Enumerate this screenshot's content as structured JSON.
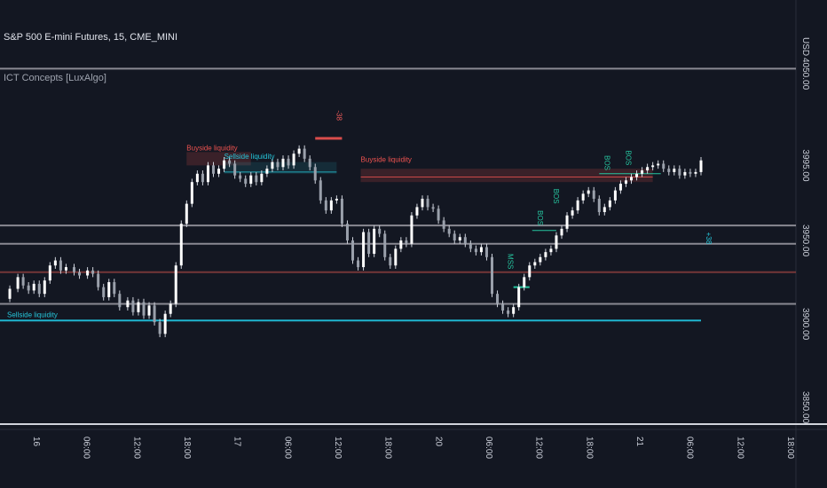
{
  "header": {
    "title": "S&P 500 E-mini Futures, 15, CME_MINI",
    "indicator": "ICT Concepts [LuxAlgo]"
  },
  "chart_data": {
    "type": "line",
    "currency": "USD",
    "ylim": [
      3845,
      4080
    ],
    "y_ticks": [
      3850,
      3900,
      3950,
      3995,
      4050
    ],
    "y_tick_labels": [
      "3850.00",
      "3900.00",
      "3950.00",
      "3995.00",
      "4050.00"
    ],
    "x_ticks": [
      "16",
      "06:00",
      "12:00",
      "18:00",
      "17",
      "06:00",
      "12:00",
      "18:00",
      "20",
      "06:00",
      "12:00",
      "18:00",
      "21",
      "06:00",
      "12:00",
      "18:00"
    ],
    "x_range": [
      0,
      300
    ],
    "price": [
      [
        0,
        3915
      ],
      [
        2,
        3921
      ],
      [
        5,
        3928
      ],
      [
        7,
        3923
      ],
      [
        9,
        3920
      ],
      [
        11,
        3924
      ],
      [
        13,
        3918
      ],
      [
        15,
        3926
      ],
      [
        17,
        3935
      ],
      [
        19,
        3938
      ],
      [
        21,
        3932
      ],
      [
        23,
        3934
      ],
      [
        26,
        3931
      ],
      [
        28,
        3929
      ],
      [
        31,
        3932
      ],
      [
        33,
        3930
      ],
      [
        35,
        3922
      ],
      [
        37,
        3916
      ],
      [
        39,
        3925
      ],
      [
        41,
        3918
      ],
      [
        43,
        3910
      ],
      [
        46,
        3914
      ],
      [
        48,
        3907
      ],
      [
        50,
        3913
      ],
      [
        52,
        3905
      ],
      [
        54,
        3911
      ],
      [
        56,
        3901
      ],
      [
        58,
        3894
      ],
      [
        60,
        3906
      ],
      [
        62,
        3912
      ],
      [
        64,
        3935
      ],
      [
        66,
        3960
      ],
      [
        68,
        3972
      ],
      [
        70,
        3985
      ],
      [
        72,
        3990
      ],
      [
        74,
        3985
      ],
      [
        76,
        3995
      ],
      [
        78,
        3990
      ],
      [
        80,
        3993
      ],
      [
        82,
        3998
      ],
      [
        84,
        3996
      ],
      [
        86,
        3989
      ],
      [
        88,
        3987
      ],
      [
        90,
        3984
      ],
      [
        92,
        3989
      ],
      [
        94,
        3985
      ],
      [
        96,
        3990
      ],
      [
        98,
        3993
      ],
      [
        100,
        3997
      ],
      [
        102,
        3994
      ],
      [
        104,
        3999
      ],
      [
        106,
        3995
      ],
      [
        108,
        4002
      ],
      [
        110,
        4005
      ],
      [
        112,
        3999
      ],
      [
        114,
        3994
      ],
      [
        116,
        3986
      ],
      [
        118,
        3974
      ],
      [
        120,
        3968
      ],
      [
        122,
        3974
      ],
      [
        124,
        3975
      ],
      [
        126,
        3960
      ],
      [
        128,
        3950
      ],
      [
        130,
        3938
      ],
      [
        132,
        3934
      ],
      [
        134,
        3955
      ],
      [
        136,
        3942
      ],
      [
        138,
        3957
      ],
      [
        140,
        3954
      ],
      [
        142,
        3940
      ],
      [
        144,
        3935
      ],
      [
        146,
        3945
      ],
      [
        148,
        3950
      ],
      [
        150,
        3948
      ],
      [
        152,
        3965
      ],
      [
        154,
        3970
      ],
      [
        156,
        3975
      ],
      [
        158,
        3970
      ],
      [
        160,
        3969
      ],
      [
        162,
        3962
      ],
      [
        164,
        3957
      ],
      [
        166,
        3954
      ],
      [
        168,
        3950
      ],
      [
        170,
        3952
      ],
      [
        172,
        3948
      ],
      [
        174,
        3945
      ],
      [
        176,
        3943
      ],
      [
        178,
        3946
      ],
      [
        180,
        3940
      ],
      [
        182,
        3918
      ],
      [
        184,
        3912
      ],
      [
        186,
        3908
      ],
      [
        188,
        3906
      ],
      [
        190,
        3910
      ],
      [
        192,
        3922
      ],
      [
        194,
        3928
      ],
      [
        196,
        3935
      ],
      [
        198,
        3937
      ],
      [
        200,
        3940
      ],
      [
        202,
        3943
      ],
      [
        204,
        3945
      ],
      [
        206,
        3953
      ],
      [
        208,
        3957
      ],
      [
        210,
        3965
      ],
      [
        212,
        3968
      ],
      [
        214,
        3974
      ],
      [
        216,
        3978
      ],
      [
        218,
        3980
      ],
      [
        220,
        3975
      ],
      [
        222,
        3967
      ],
      [
        224,
        3970
      ],
      [
        226,
        3974
      ],
      [
        228,
        3980
      ],
      [
        230,
        3984
      ],
      [
        232,
        3986
      ],
      [
        234,
        3988
      ],
      [
        236,
        3990
      ],
      [
        238,
        3992
      ],
      [
        240,
        3994
      ],
      [
        242,
        3995
      ],
      [
        244,
        3996
      ],
      [
        246,
        3993
      ],
      [
        248,
        3991
      ],
      [
        250,
        3993
      ],
      [
        252,
        3989
      ],
      [
        254,
        3991
      ],
      [
        256,
        3990
      ],
      [
        258,
        3991
      ],
      [
        260,
        3998
      ]
    ],
    "levels": [
      {
        "value": 4053,
        "color": "#9e9ea6"
      },
      {
        "value": 3959,
        "color": "#9e9ea6"
      },
      {
        "value": 3948,
        "color": "#9e9ea6"
      },
      {
        "value": 3931,
        "color": "#7f3b3b"
      },
      {
        "value": 3912,
        "color": "#9e9ea6"
      },
      {
        "value": 3902,
        "color": "#22d1ee"
      }
    ],
    "labels": [
      {
        "text": "-38",
        "x": 124,
        "y": 4028,
        "color": "#f25b5b"
      },
      {
        "text": "Buyside liquidity",
        "x": 68,
        "y": 4004,
        "color": "#ef5350"
      },
      {
        "text": "Sellside liquidity",
        "x": 82,
        "y": 3999,
        "color": "#26c6da"
      },
      {
        "text": "Buyside liquidity",
        "x": 133,
        "y": 3997,
        "color": "#ef5350"
      },
      {
        "text": "Sellside liquidity",
        "x": 1,
        "y": 3904,
        "color": "#26c6da"
      },
      {
        "text": "BOS",
        "x": 224,
        "y": 4001,
        "color": "#26c6a0"
      },
      {
        "text": "BOS",
        "x": 232,
        "y": 4004,
        "color": "#26c6a0"
      },
      {
        "text": "BOS",
        "x": 205,
        "y": 3981,
        "color": "#26c6a0"
      },
      {
        "text": "BOS",
        "x": 199,
        "y": 3968,
        "color": "#26c6a0"
      },
      {
        "text": "MSS",
        "x": 188,
        "y": 3942,
        "color": "#26c6a0"
      },
      {
        "text": "+38",
        "x": 262,
        "y": 3955,
        "color": "#26c6da"
      }
    ],
    "up_color": "#ffffff",
    "down_color": "#ffffff",
    "buyside_color": "#ef5350",
    "sellside_color": "#26c6da",
    "bos_color": "#26c6a0"
  }
}
